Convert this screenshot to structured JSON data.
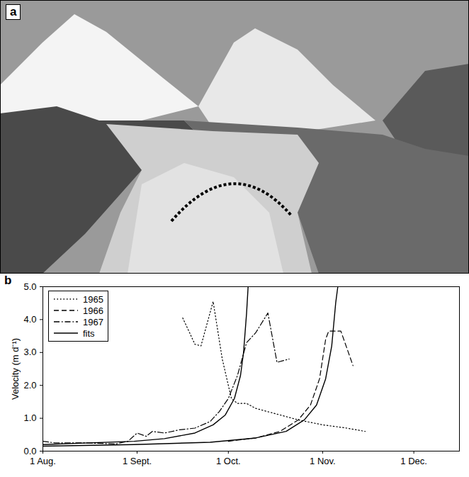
{
  "photo": {
    "panel_label": "a"
  },
  "chart_data": {
    "type": "line",
    "panel_label": "b",
    "ylabel": "Velocity (m d⁻¹)",
    "xlim": [
      0,
      137
    ],
    "xticks": [
      {
        "value": 0,
        "label": "1 Aug."
      },
      {
        "value": 31,
        "label": "1 Sept."
      },
      {
        "value": 61,
        "label": "1 Oct."
      },
      {
        "value": 92,
        "label": "1 Nov."
      },
      {
        "value": 122,
        "label": "1 Dec."
      }
    ],
    "ylim": [
      0,
      5
    ],
    "yticks": [
      0,
      1,
      2,
      3,
      4,
      5
    ],
    "legend": "top-left",
    "series": [
      {
        "name": "1965",
        "color": "#000000",
        "line_style": "dotted",
        "x": [
          46,
          50,
          52,
          56,
          59,
          62,
          64,
          67,
          70,
          76,
          84,
          92,
          100,
          106
        ],
        "values": [
          4.05,
          3.25,
          3.2,
          4.55,
          2.8,
          1.6,
          1.45,
          1.45,
          1.3,
          1.15,
          0.95,
          0.8,
          0.7,
          0.6
        ]
      },
      {
        "name": "1966",
        "color": "#000000",
        "line_style": "dashed",
        "x": [
          61,
          70,
          78,
          84,
          88,
          91,
          93,
          94,
          98,
          102
        ],
        "values": [
          0.3,
          0.4,
          0.6,
          0.95,
          1.4,
          2.2,
          3.4,
          3.65,
          3.65,
          2.6
        ]
      },
      {
        "name": "1967",
        "color": "#000000",
        "line_style": "dashdot",
        "x": [
          0,
          4,
          14,
          24,
          28,
          31,
          34,
          36,
          40,
          45,
          50,
          55,
          58,
          61,
          64,
          67,
          70,
          74,
          77,
          81
        ],
        "values": [
          0.3,
          0.25,
          0.25,
          0.22,
          0.3,
          0.55,
          0.45,
          0.6,
          0.55,
          0.65,
          0.7,
          0.9,
          1.2,
          1.6,
          2.3,
          3.3,
          3.6,
          4.2,
          2.7,
          2.8
        ]
      },
      {
        "name": "fits",
        "color": "#000000",
        "line_style": "solid",
        "x": [
          0,
          15,
          30,
          40,
          50,
          56,
          60,
          63,
          65,
          66,
          67,
          67.5,
          null,
          0,
          30,
          55,
          70,
          80,
          86,
          90,
          93,
          95,
          96.3,
          97
        ],
        "values": [
          0.2,
          0.25,
          0.3,
          0.38,
          0.55,
          0.8,
          1.1,
          1.6,
          2.3,
          3.0,
          4.2,
          5,
          null,
          0.15,
          0.2,
          0.27,
          0.4,
          0.6,
          0.95,
          1.4,
          2.2,
          3.2,
          4.5,
          5
        ]
      }
    ]
  }
}
